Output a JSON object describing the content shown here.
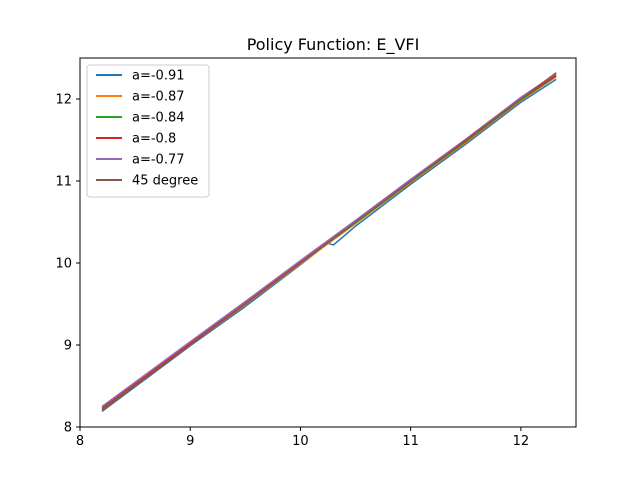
{
  "chart_data": {
    "type": "line",
    "title": "Policy Function: E_VFI",
    "xlabel": "",
    "ylabel": "",
    "xlim": [
      8,
      12.5
    ],
    "ylim": [
      8,
      12.5
    ],
    "xticks": [
      8,
      9,
      10,
      11,
      12
    ],
    "yticks": [
      8,
      9,
      10,
      11,
      12
    ],
    "grid": false,
    "legend_position": "top-left",
    "series": [
      {
        "name": "a=-0.91",
        "color": "#1f77b4",
        "x": [
          8.2,
          9.0,
          9.5,
          10.0,
          10.25,
          10.3,
          10.5,
          11.0,
          11.5,
          12.0,
          12.32
        ],
        "y": [
          8.19,
          8.99,
          9.47,
          9.98,
          10.24,
          10.22,
          10.45,
          10.96,
          11.45,
          11.96,
          12.24
        ]
      },
      {
        "name": "a=-0.87",
        "color": "#ff7f0e",
        "x": [
          8.2,
          9.0,
          9.5,
          10.0,
          10.5,
          11.0,
          11.5,
          12.0,
          12.32
        ],
        "y": [
          8.21,
          9.0,
          9.49,
          9.99,
          10.48,
          10.98,
          11.47,
          11.98,
          12.27
        ]
      },
      {
        "name": "a=-0.84",
        "color": "#2ca02c",
        "x": [
          8.2,
          9.0,
          9.5,
          10.0,
          10.5,
          11.0,
          11.5,
          12.0,
          12.32
        ],
        "y": [
          8.22,
          9.01,
          9.5,
          10.0,
          10.49,
          10.99,
          11.48,
          11.99,
          12.28
        ]
      },
      {
        "name": "a=-0.8",
        "color": "#d62728",
        "x": [
          8.2,
          9.0,
          9.5,
          10.0,
          10.5,
          11.0,
          11.5,
          12.0,
          12.32
        ],
        "y": [
          8.23,
          9.02,
          9.51,
          10.01,
          10.5,
          11.0,
          11.49,
          12.0,
          12.29
        ]
      },
      {
        "name": "a=-0.77",
        "color": "#9467bd",
        "x": [
          8.2,
          9.0,
          9.5,
          10.0,
          10.5,
          11.0,
          11.5,
          12.0,
          12.32
        ],
        "y": [
          8.25,
          9.04,
          9.53,
          10.03,
          10.52,
          11.02,
          11.51,
          12.02,
          12.31
        ]
      },
      {
        "name": "45 degree",
        "color": "#8c564b",
        "x": [
          8.2,
          12.32
        ],
        "y": [
          8.2,
          12.32
        ]
      }
    ]
  }
}
